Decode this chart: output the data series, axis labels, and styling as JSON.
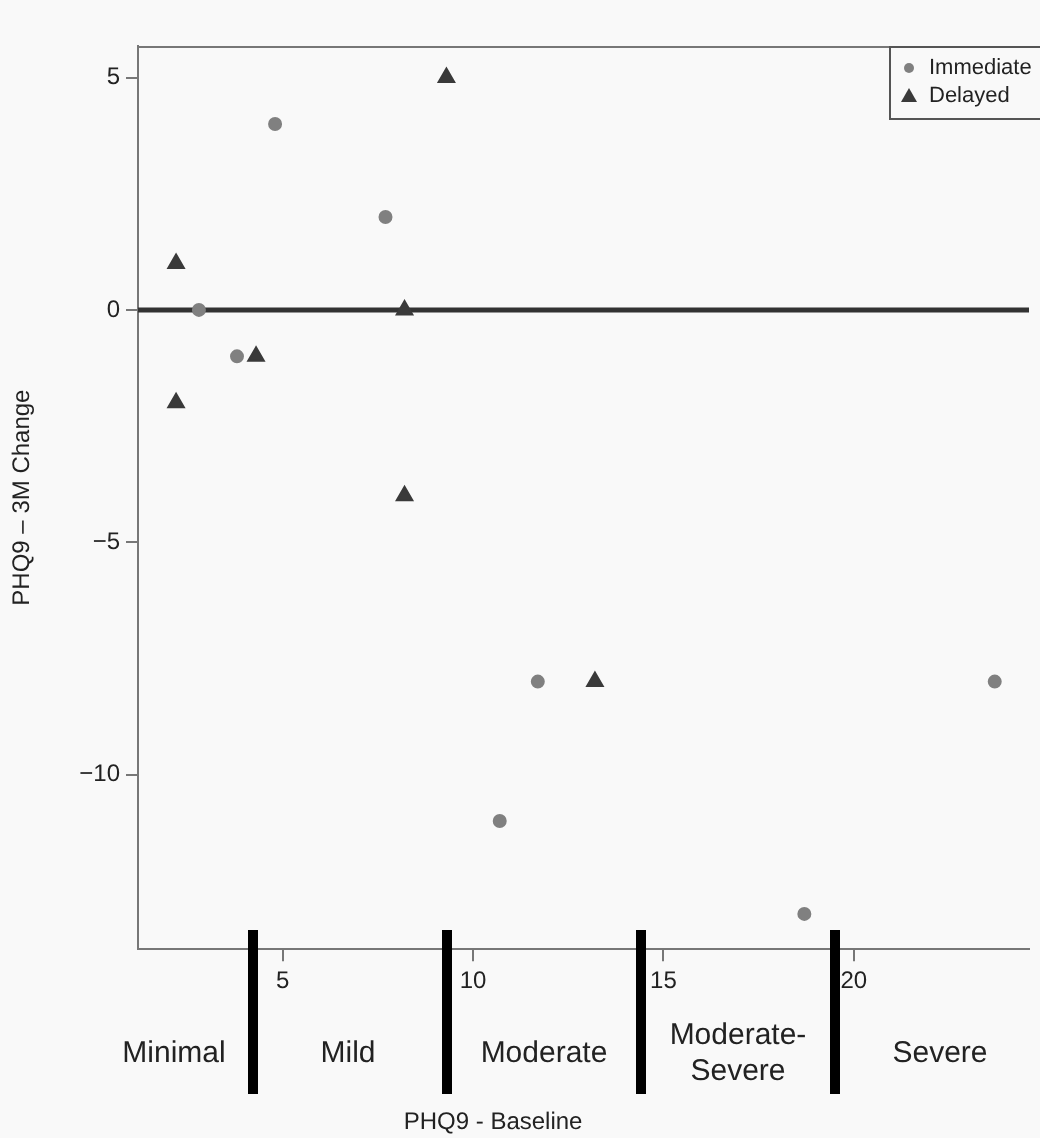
{
  "chart_data": {
    "type": "scatter",
    "xlabel": "PHQ9 - Baseline",
    "ylabel": "PHQ9 – 3M Change",
    "xlim": [
      1.2,
      24.6
    ],
    "ylim": [
      -13.76,
      5.68
    ],
    "xticks": [
      5,
      10,
      15,
      20
    ],
    "yticks": [
      -10,
      -5,
      0,
      5
    ],
    "grid": false,
    "legend": "top right",
    "series": [
      {
        "name": "Immediate",
        "color": "#808080",
        "marker": "circle",
        "x": [
          4.8,
          7.7,
          2.8,
          3.8,
          10.7,
          11.7,
          18.7,
          23.7
        ],
        "values": [
          4,
          2,
          0,
          -1,
          -11,
          -8,
          -13,
          -8
        ]
      },
      {
        "name": "Delayed",
        "color": "#3a3a3a",
        "marker": "triangle",
        "x": [
          2.2,
          2.2,
          4.3,
          8.2,
          8.2,
          9.3,
          13.2
        ],
        "values": [
          1,
          -2,
          -1,
          0,
          -4,
          5,
          -8
        ]
      }
    ],
    "ref_lines": [
      {
        "axis": "y",
        "value": 0,
        "label": null,
        "color": "#333333"
      }
    ],
    "annotations": [
      "Minimal",
      "Mild",
      "Moderate",
      "Moderate-Severe",
      "Severe"
    ]
  }
}
